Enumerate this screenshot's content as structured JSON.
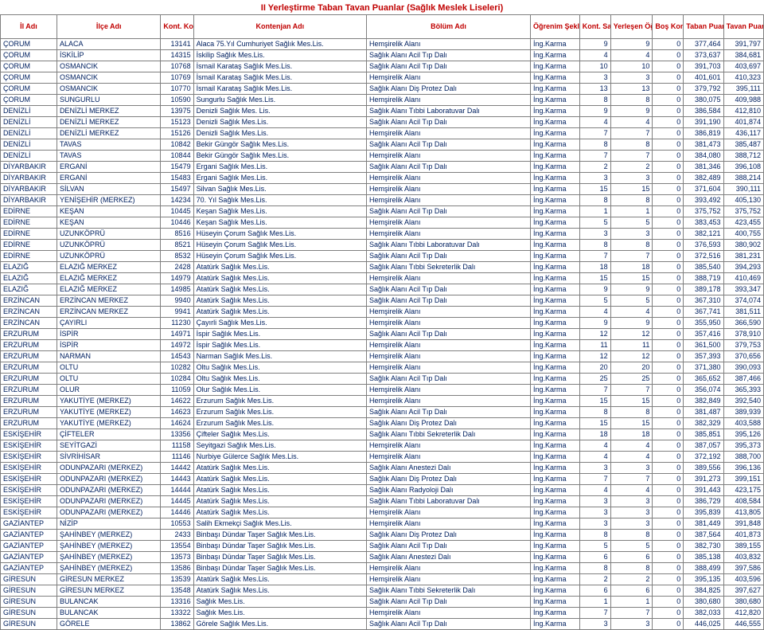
{
  "title": "II Yerleştirme Taban Tavan Puanlar (Sağlık Meslek Liseleri)",
  "headers": {
    "il": "İl Adı",
    "ilce": "İlçe Adı",
    "kod": "Kont. Kodu",
    "kont": "Kontenjan Adı",
    "bolum": "Bölüm Adı",
    "sekli": "Öğrenim Şekli",
    "ksay": "Kont. Sayısı",
    "yerl": "Yerleşen Öğr. Sayısı",
    "bos": "Boş Kont. Sayısı",
    "taban": "Taban Puan",
    "tavan": "Tavan Puan"
  },
  "rows": [
    [
      "ÇORUM",
      "ALACA",
      "13141",
      "Alaca 75.Yıl Cumhuriyet Sağlık Mes.Lis.",
      "Hemşirelik Alanı",
      "İng.Karma",
      "9",
      "9",
      "0",
      "377,464",
      "391,797"
    ],
    [
      "ÇORUM",
      "İSKİLİP",
      "14315",
      "İskilip Sağlık Mes.Lis.",
      "Sağlık Alanı Acil Tıp Dalı",
      "İng.Karma",
      "4",
      "4",
      "0",
      "373,637",
      "384,681"
    ],
    [
      "ÇORUM",
      "OSMANCIK",
      "10768",
      "İsmail Karataş Sağlık Mes.Lis.",
      "Sağlık Alanı Acil Tıp Dalı",
      "İng.Karma",
      "10",
      "10",
      "0",
      "391,703",
      "403,697"
    ],
    [
      "ÇORUM",
      "OSMANCIK",
      "10769",
      "İsmail Karataş Sağlık Mes.Lis.",
      "Hemşirelik Alanı",
      "İng.Karma",
      "3",
      "3",
      "0",
      "401,601",
      "410,323"
    ],
    [
      "ÇORUM",
      "OSMANCIK",
      "10770",
      "İsmail Karataş Sağlık Mes.Lis.",
      "Sağlık Alanı Diş Protez Dalı",
      "İng.Karma",
      "13",
      "13",
      "0",
      "379,792",
      "395,111"
    ],
    [
      "ÇORUM",
      "SUNGURLU",
      "10590",
      "Sungurlu Sağlık Mes.Lis.",
      "Hemşirelik Alanı",
      "İng.Karma",
      "8",
      "8",
      "0",
      "380,075",
      "409,988"
    ],
    [
      "DENİZLİ",
      "DENİZLİ MERKEZ",
      "13975",
      "Denizli Sağlık Mes. Lis.",
      "Sağlık Alanı Tıbbi Laboratuvar Dalı",
      "İng.Karma",
      "9",
      "9",
      "0",
      "386,584",
      "412,810"
    ],
    [
      "DENİZLİ",
      "DENİZLİ MERKEZ",
      "15123",
      "Denizli Sağlık Mes.Lis.",
      "Sağlık Alanı Acil Tıp Dalı",
      "İng.Karma",
      "4",
      "4",
      "0",
      "391,190",
      "401,874"
    ],
    [
      "DENİZLİ",
      "DENİZLİ MERKEZ",
      "15126",
      "Denizli Sağlık Mes.Lis.",
      "Hemşirelik Alanı",
      "İng.Karma",
      "7",
      "7",
      "0",
      "386,819",
      "436,117"
    ],
    [
      "DENİZLİ",
      "TAVAS",
      "10842",
      "Bekir Güngör Sağlık Mes.Lis.",
      "Sağlık Alanı Acil Tıp Dalı",
      "İng.Karma",
      "8",
      "8",
      "0",
      "381,473",
      "385,487"
    ],
    [
      "DENİZLİ",
      "TAVAS",
      "10844",
      "Bekir Güngör Sağlık Mes.Lis.",
      "Hemşirelik Alanı",
      "İng.Karma",
      "7",
      "7",
      "0",
      "384,080",
      "388,712"
    ],
    [
      "DİYARBAKIR",
      "ERGANİ",
      "15479",
      "Ergani Sağlık Mes.Lis.",
      "Sağlık Alanı Acil Tıp Dalı",
      "İng.Karma",
      "2",
      "2",
      "0",
      "381,346",
      "396,108"
    ],
    [
      "DİYARBAKIR",
      "ERGANİ",
      "15483",
      "Ergani Sağlık Mes.Lis.",
      "Hemşirelik Alanı",
      "İng.Karma",
      "3",
      "3",
      "0",
      "382,489",
      "388,214"
    ],
    [
      "DİYARBAKIR",
      "SİLVAN",
      "15497",
      "Silvan Sağlık Mes.Lis.",
      "Hemşirelik Alanı",
      "İng.Karma",
      "15",
      "15",
      "0",
      "371,604",
      "390,111"
    ],
    [
      "DİYARBAKIR",
      "YENİŞEHİR (MERKEZ)",
      "14234",
      "70. Yıl Sağlık Mes.Lis.",
      "Hemşirelik Alanı",
      "İng.Karma",
      "8",
      "8",
      "0",
      "393,492",
      "405,130"
    ],
    [
      "EDİRNE",
      "KEŞAN",
      "10445",
      "Keşan Sağlık Mes.Lis.",
      "Sağlık Alanı Acil Tıp Dalı",
      "İng.Karma",
      "1",
      "1",
      "0",
      "375,752",
      "375,752"
    ],
    [
      "EDİRNE",
      "KEŞAN",
      "10446",
      "Keşan Sağlık Mes.Lis.",
      "Hemşirelik Alanı",
      "İng.Karma",
      "5",
      "5",
      "0",
      "383,453",
      "423,455"
    ],
    [
      "EDİRNE",
      "UZUNKÖPRÜ",
      "8516",
      "Hüseyin Çorum Sağlık Mes.Lis.",
      "Hemşirelik Alanı",
      "İng.Karma",
      "3",
      "3",
      "0",
      "382,121",
      "400,755"
    ],
    [
      "EDİRNE",
      "UZUNKÖPRÜ",
      "8521",
      "Hüseyin Çorum Sağlık Mes.Lis.",
      "Sağlık Alanı Tıbbi Laboratuvar Dalı",
      "İng.Karma",
      "8",
      "8",
      "0",
      "376,593",
      "380,902"
    ],
    [
      "EDİRNE",
      "UZUNKÖPRÜ",
      "8532",
      "Hüseyin Çorum Sağlık Mes.Lis.",
      "Sağlık Alanı Acil Tıp Dalı",
      "İng.Karma",
      "7",
      "7",
      "0",
      "372,516",
      "381,231"
    ],
    [
      "ELAZIĞ",
      "ELAZIĞ MERKEZ",
      "2428",
      "Atatürk Sağlık Mes.Lis.",
      "Sağlık Alanı Tıbbi Sekreterlik Dalı",
      "İng.Karma",
      "18",
      "18",
      "0",
      "385,540",
      "394,293"
    ],
    [
      "ELAZIĞ",
      "ELAZIĞ MERKEZ",
      "14979",
      "Atatürk Sağlık Mes.Lis.",
      "Hemşirelik Alanı",
      "İng.Karma",
      "15",
      "15",
      "0",
      "388,719",
      "410,469"
    ],
    [
      "ELAZIĞ",
      "ELAZIĞ MERKEZ",
      "14985",
      "Atatürk Sağlık Mes.Lis.",
      "Sağlık Alanı Acil Tıp Dalı",
      "İng.Karma",
      "9",
      "9",
      "0",
      "389,178",
      "393,347"
    ],
    [
      "ERZİNCAN",
      "ERZİNCAN MERKEZ",
      "9940",
      "Atatürk Sağlık Mes.Lis.",
      "Sağlık Alanı Acil Tıp Dalı",
      "İng.Karma",
      "5",
      "5",
      "0",
      "367,310",
      "374,074"
    ],
    [
      "ERZİNCAN",
      "ERZİNCAN MERKEZ",
      "9941",
      "Atatürk Sağlık Mes.Lis.",
      "Hemşirelik Alanı",
      "İng.Karma",
      "4",
      "4",
      "0",
      "367,741",
      "381,511"
    ],
    [
      "ERZİNCAN",
      "ÇAYIRLI",
      "11230",
      "Çayırli Sağlık Mes.Lis.",
      "Hemşirelik Alanı",
      "İng.Karma",
      "9",
      "9",
      "0",
      "355,950",
      "366,590"
    ],
    [
      "ERZURUM",
      "İSPİR",
      "14971",
      "İspir Sağlık Mes.Lis.",
      "Sağlık Alanı Acil Tıp Dalı",
      "İng.Karma",
      "12",
      "12",
      "0",
      "357,416",
      "378,910"
    ],
    [
      "ERZURUM",
      "İSPİR",
      "14972",
      "İspir Sağlık Mes.Lis.",
      "Hemşirelik Alanı",
      "İng.Karma",
      "11",
      "11",
      "0",
      "361,500",
      "379,753"
    ],
    [
      "ERZURUM",
      "NARMAN",
      "14543",
      "Narman Sağlık Mes.Lis.",
      "Hemşirelik Alanı",
      "İng.Karma",
      "12",
      "12",
      "0",
      "357,393",
      "370,656"
    ],
    [
      "ERZURUM",
      "OLTU",
      "10282",
      "Oltu Sağlık Mes.Lis.",
      "Hemşirelik Alanı",
      "İng.Karma",
      "20",
      "20",
      "0",
      "371,380",
      "390,093"
    ],
    [
      "ERZURUM",
      "OLTU",
      "10284",
      "Oltu Sağlık Mes.Lis.",
      "Sağlık Alanı Acil Tıp Dalı",
      "İng.Karma",
      "25",
      "25",
      "0",
      "365,652",
      "387,466"
    ],
    [
      "ERZURUM",
      "OLUR",
      "11059",
      "Olur Sağlık Mes.Lis.",
      "Hemşirelik Alanı",
      "İng.Karma",
      "7",
      "7",
      "0",
      "356,074",
      "365,393"
    ],
    [
      "ERZURUM",
      "YAKUTİYE (MERKEZ)",
      "14622",
      "Erzurum Sağlık Mes.Lis.",
      "Hemşirelik Alanı",
      "İng.Karma",
      "15",
      "15",
      "0",
      "382,849",
      "392,540"
    ],
    [
      "ERZURUM",
      "YAKUTİYE (MERKEZ)",
      "14623",
      "Erzurum Sağlık Mes.Lis.",
      "Sağlık Alanı Acil Tıp Dalı",
      "İng.Karma",
      "8",
      "8",
      "0",
      "381,487",
      "389,939"
    ],
    [
      "ERZURUM",
      "YAKUTİYE (MERKEZ)",
      "14624",
      "Erzurum Sağlık Mes.Lis.",
      "Sağlık Alanı Diş Protez Dalı",
      "İng.Karma",
      "15",
      "15",
      "0",
      "382,329",
      "403,588"
    ],
    [
      "ESKİŞEHİR",
      "ÇİFTELER",
      "13356",
      "Çifteler Sağlık Mes.Lis.",
      "Sağlık Alanı Tıbbi Sekreterlik Dalı",
      "İng.Karma",
      "18",
      "18",
      "0",
      "385,851",
      "395,126"
    ],
    [
      "ESKİŞEHİR",
      "SEYİTGAZİ",
      "11158",
      "Seyitgazi Sağlık Mes.Lis.",
      "Hemşirelik Alanı",
      "İng.Karma",
      "4",
      "4",
      "0",
      "387,057",
      "395,373"
    ],
    [
      "ESKİŞEHİR",
      "SİVRİHİSAR",
      "11146",
      "Nurbiye Gülerce Sağlık Mes.Lis.",
      "Hemşirelik Alanı",
      "İng.Karma",
      "4",
      "4",
      "0",
      "372,192",
      "388,700"
    ],
    [
      "ESKİŞEHİR",
      "ODUNPAZARI (MERKEZ)",
      "14442",
      "Atatürk Sağlık Mes.Lis.",
      "Sağlık Alanı Anestezi Dalı",
      "İng.Karma",
      "3",
      "3",
      "0",
      "389,556",
      "396,136"
    ],
    [
      "ESKİŞEHİR",
      "ODUNPAZARI (MERKEZ)",
      "14443",
      "Atatürk Sağlık Mes.Lis.",
      "Sağlık Alanı Diş Protez Dalı",
      "İng.Karma",
      "7",
      "7",
      "0",
      "391,273",
      "399,151"
    ],
    [
      "ESKİŞEHİR",
      "ODUNPAZARI (MERKEZ)",
      "14444",
      "Atatürk Sağlık Mes.Lis.",
      "Sağlık Alanı Radyoloji Dalı",
      "İng.Karma",
      "4",
      "4",
      "0",
      "391,443",
      "423,175"
    ],
    [
      "ESKİŞEHİR",
      "ODUNPAZARI (MERKEZ)",
      "14445",
      "Atatürk Sağlık Mes.Lis.",
      "Sağlık Alanı Tıbbi Laboratuvar Dalı",
      "İng.Karma",
      "3",
      "3",
      "0",
      "386,729",
      "408,584"
    ],
    [
      "ESKİŞEHİR",
      "ODUNPAZARI (MERKEZ)",
      "14446",
      "Atatürk Sağlık Mes.Lis.",
      "Hemşirelik Alanı",
      "İng.Karma",
      "3",
      "3",
      "0",
      "395,839",
      "413,805"
    ],
    [
      "GAZİANTEP",
      "NİZİP",
      "10553",
      "Salih Ekmekçi Sağlık Mes.Lis.",
      "Hemşirelik Alanı",
      "İng.Karma",
      "3",
      "3",
      "0",
      "381,449",
      "391,848"
    ],
    [
      "GAZİANTEP",
      "ŞAHİNBEY (MERKEZ)",
      "2433",
      "Binbaşı Dündar Taşer Sağlık Mes.Lis.",
      "Sağlık Alanı Diş Protez Dalı",
      "İng.Karma",
      "8",
      "8",
      "0",
      "387,564",
      "401,873"
    ],
    [
      "GAZİANTEP",
      "ŞAHİNBEY (MERKEZ)",
      "13554",
      "Binbaşı Dündar Taşer Sağlık Mes.Lis.",
      "Sağlık Alanı Acil Tıp Dalı",
      "İng.Karma",
      "5",
      "5",
      "0",
      "382,730",
      "389,155"
    ],
    [
      "GAZİANTEP",
      "ŞAHİNBEY (MERKEZ)",
      "13573",
      "Binbaşı Dündar Taşer Sağlık Mes.Lis.",
      "Sağlık Alanı Anestezi Dalı",
      "İng.Karma",
      "6",
      "6",
      "0",
      "385,138",
      "403,832"
    ],
    [
      "GAZİANTEP",
      "ŞAHİNBEY (MERKEZ)",
      "13586",
      "Binbaşı Dündar Taşer Sağlık Mes.Lis.",
      "Hemşirelik Alanı",
      "İng.Karma",
      "8",
      "8",
      "0",
      "388,499",
      "397,586"
    ],
    [
      "GİRESUN",
      "GİRESUN MERKEZ",
      "13539",
      "Atatürk Sağlık Mes.Lis.",
      "Hemşirelik Alanı",
      "İng.Karma",
      "2",
      "2",
      "0",
      "395,135",
      "403,596"
    ],
    [
      "GİRESUN",
      "GİRESUN MERKEZ",
      "13548",
      "Atatürk Sağlık Mes.Lis.",
      "Sağlık Alanı Tıbbi Sekreterlik Dalı",
      "İng.Karma",
      "6",
      "6",
      "0",
      "384,825",
      "397,627"
    ],
    [
      "GİRESUN",
      "BULANCAK",
      "13316",
      "Sağlık Mes.Lis.",
      "Sağlık Alanı Acil Tıp Dalı",
      "İng.Karma",
      "1",
      "1",
      "0",
      "380,680",
      "380,680"
    ],
    [
      "GİRESUN",
      "BULANCAK",
      "13322",
      "Sağlık Mes.Lis.",
      "Hemşirelik Alanı",
      "İng.Karma",
      "7",
      "7",
      "0",
      "382,033",
      "412,820"
    ],
    [
      "GİRESUN",
      "GÖRELE",
      "13862",
      "Görele Sağlık Mes.Lis.",
      "Sağlık Alanı Acil Tıp Dalı",
      "İng.Karma",
      "3",
      "3",
      "0",
      "446,025",
      "446,555"
    ]
  ]
}
